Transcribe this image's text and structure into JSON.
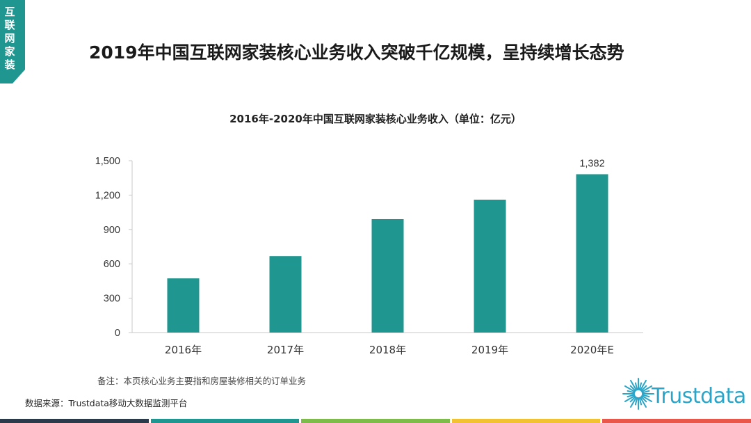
{
  "corner_tab": {
    "label": "互联网家装",
    "color": "#1f9690"
  },
  "page_title": "2019年中国互联网家装核心业务收入突破千亿规模，呈持续增长态势",
  "chart_title": "2016年-2020年中国互联网家装核心业务收入（单位：亿元）",
  "chart_data": {
    "type": "bar",
    "title": "2016年-2020年中国互联网家装核心业务收入（单位：亿元）",
    "categories": [
      "2016年",
      "2017年",
      "2018年",
      "2019年",
      "2020年E"
    ],
    "values": [
      473,
      667,
      990,
      1160,
      1382
    ],
    "data_labels": [
      "",
      "",
      "",
      "",
      "1,382"
    ],
    "ylim": [
      0,
      1500
    ],
    "yticks": [
      0,
      300,
      600,
      900,
      1200,
      1500
    ],
    "ytick_labels": [
      "0",
      "300",
      "600",
      "900",
      "1,200",
      "1,500"
    ],
    "xlabel": "",
    "ylabel": "",
    "grid": false,
    "bar_color": "#1f9690"
  },
  "note": "备注：本页核心业务主要指和房屋装修相关的订单业务",
  "source": "数据来源：Trustdata移动大数据监测平台",
  "logo": {
    "text": "Trustdata",
    "color": "#2aa5c8",
    "icon": "sunburst-logo-icon"
  },
  "bottom_bar_colors": [
    "#2b3a4a",
    "#1f9690",
    "#7dbb4a",
    "#f3c232",
    "#e8574a"
  ]
}
